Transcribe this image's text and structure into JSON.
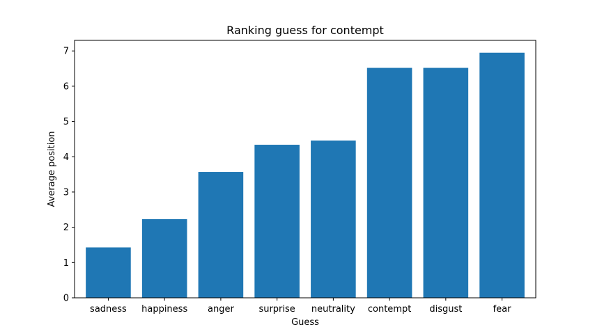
{
  "chart_data": {
    "type": "bar",
    "title": "Ranking guess for contempt",
    "xlabel": "Guess",
    "ylabel": "Average position",
    "categories": [
      "sadness",
      "happiness",
      "anger",
      "surprise",
      "neutrality",
      "contempt",
      "disgust",
      "fear"
    ],
    "values": [
      1.43,
      2.23,
      3.57,
      4.34,
      4.46,
      6.52,
      6.52,
      6.95
    ],
    "ylim": [
      0,
      7.3
    ],
    "yticks": [
      0,
      1,
      2,
      3,
      4,
      5,
      6,
      7
    ],
    "bar_color": "#1f77b4",
    "grid": false,
    "legend": "none"
  }
}
